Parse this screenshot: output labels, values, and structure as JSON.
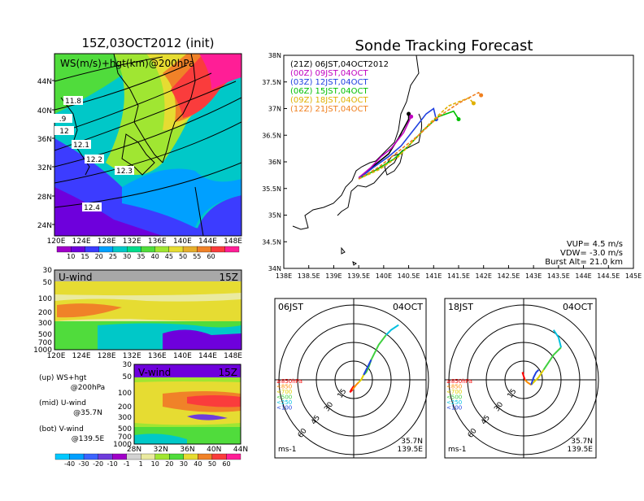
{
  "page": {
    "title": "Sonde Tracking Forecast"
  },
  "left": {
    "title": "15Z,03OCT2012 (init)",
    "map_label": "WS(m/s)+hgt(km)@200hPa",
    "map_lat_labels": [
      "44N",
      "40N",
      "36N",
      "32N",
      "28N",
      "24N"
    ],
    "map_lon_labels": [
      "120E",
      "124E",
      "128E",
      "132E",
      "136E",
      "140E",
      "144E",
      "148E"
    ],
    "contour_labels": [
      "11.8",
      ".9",
      "12",
      "12.1",
      "12.2",
      "12.3",
      "12.4"
    ],
    "ws_colorbar": [
      "10",
      "15",
      "20",
      "25",
      "30",
      "35",
      "40",
      "45",
      "50",
      "55",
      "60"
    ],
    "ws_colors": [
      "#a000c8",
      "#6e00dc",
      "#3c3cff",
      "#00a0ff",
      "#00c8c8",
      "#00dc8c",
      "#50dc3c",
      "#a0e632",
      "#e6dc32",
      "#e6af2d",
      "#f08228",
      "#fa3c3c",
      "#ff1e96"
    ],
    "u_label": "U-wind",
    "u_time": "15Z",
    "u_pressure_labels": [
      "30",
      "50",
      "100",
      "200",
      "300",
      "500",
      "700",
      "1000"
    ],
    "u_lon_labels": [
      "120E",
      "124E",
      "128E",
      "132E",
      "136E",
      "140E",
      "144E",
      "148E"
    ],
    "v_label": "V-wind",
    "v_time": "15Z",
    "v_pressure_labels": [
      "30",
      "50",
      "100",
      "200",
      "300",
      "500",
      "700",
      "1000"
    ],
    "v_lat_labels": [
      "28N",
      "32N",
      "36N",
      "40N",
      "44N"
    ],
    "legend_lines": [
      "(up) WS+hgt",
      "@200hPa",
      "(mid) U-wind",
      "@35.7N",
      "(bot) V-wind",
      "@139.5E"
    ],
    "wind_colorbar": [
      "-40",
      "-30",
      "-20",
      "-10",
      "-1",
      "1",
      "10",
      "20",
      "30",
      "40",
      "50",
      "60"
    ],
    "wind_colors": [
      "#00c8ff",
      "#00a0ff",
      "#3c64ff",
      "#6e3cdc",
      "#a000c8",
      "#d2d2d2",
      "#eaeaa0",
      "#a0e632",
      "#50dc3c",
      "#e6dc32",
      "#f08228",
      "#fa3c3c",
      "#ff1e96"
    ]
  },
  "chart_data": [
    {
      "type": "line",
      "title": "Sonde Tracking Forecast",
      "xlim": [
        138.0,
        145.0
      ],
      "ylim": [
        34.0,
        38.0
      ],
      "xticks": [
        "138E",
        "138.5E",
        "139E",
        "139.5E",
        "140E",
        "140.5E",
        "141E",
        "141.5E",
        "142E",
        "142.5E",
        "143E",
        "143.5E",
        "144E",
        "144.5E",
        "145E"
      ],
      "yticks": [
        "34N",
        "34.5N",
        "35N",
        "35.5N",
        "36N",
        "36.5N",
        "37N",
        "37.5N",
        "38N"
      ],
      "legend_placement": "top-left",
      "series": [
        {
          "name": "(21Z) 06JST,04OCT2012",
          "color": "#000000",
          "x": [
            139.5,
            139.7,
            139.9,
            140.1,
            140.3,
            140.5,
            140.5
          ],
          "y": [
            35.7,
            35.85,
            36.0,
            36.15,
            36.45,
            36.8,
            36.9
          ]
        },
        {
          "name": "(00Z) 09JST,04OCT",
          "color": "#c000c0",
          "x": [
            139.5,
            139.75,
            139.95,
            140.15,
            140.4,
            140.55
          ],
          "y": [
            35.7,
            35.9,
            36.1,
            36.25,
            36.55,
            36.85
          ]
        },
        {
          "name": "(03Z) 12JST,04OCT",
          "color": "#2040e0",
          "x": [
            139.5,
            139.8,
            140.1,
            140.35,
            140.6,
            140.85,
            141.0,
            141.05
          ],
          "y": [
            35.68,
            35.9,
            36.1,
            36.3,
            36.6,
            36.9,
            37.0,
            36.8
          ]
        },
        {
          "name": "(06Z) 15JST,04OCT",
          "color": "#00c000",
          "x": [
            139.5,
            139.85,
            140.2,
            140.5,
            140.8,
            141.1,
            141.4,
            141.5
          ],
          "y": [
            35.68,
            35.85,
            36.05,
            36.3,
            36.6,
            36.85,
            36.95,
            36.8
          ]
        },
        {
          "name": "(09Z) 18JST,04OCT",
          "color": "#e0b000",
          "x": [
            139.5,
            139.9,
            140.3,
            140.6,
            140.95,
            141.3,
            141.7,
            141.8
          ],
          "y": [
            35.68,
            35.85,
            36.1,
            36.4,
            36.75,
            37.05,
            37.2,
            37.1
          ]
        },
        {
          "name": "(12Z) 21JST,04OCT",
          "color": "#f08020",
          "x": [
            139.5,
            139.9,
            140.3,
            140.7,
            141.1,
            141.5,
            141.9,
            141.95
          ],
          "y": [
            35.68,
            35.9,
            36.2,
            36.5,
            36.85,
            37.1,
            37.3,
            37.25
          ]
        }
      ],
      "annotations": [
        "VUP= 4.5 m/s",
        "VDW= -3.0 m/s",
        "Burst Alt= 21.0 km"
      ]
    },
    {
      "type": "scatter",
      "title": "06JST",
      "date": "04OCT",
      "rings": [
        "15",
        "30",
        "45",
        "60"
      ],
      "units": "ms-1",
      "station": [
        "35.7N",
        "139.5E"
      ],
      "levels": [
        "≥850hPa",
        "<850",
        "<700",
        "<500",
        "<250",
        "<100"
      ],
      "level_colors": [
        "#ff0000",
        "#ff8c00",
        "#e0d000",
        "#40d040",
        "#00c0e0",
        "#2040e0"
      ],
      "points": [
        {
          "level": "≥850hPa",
          "u": [
            0,
            -2,
            -3,
            -1
          ],
          "v": [
            -5,
            -8,
            -10,
            -8
          ]
        },
        {
          "level": "<850",
          "u": [
            -1,
            2,
            4
          ],
          "v": [
            -8,
            -4,
            -2
          ]
        },
        {
          "level": "<700",
          "u": [
            4,
            6,
            8
          ],
          "v": [
            -2,
            0,
            4
          ]
        },
        {
          "level": "<500",
          "u": [
            8,
            10,
            12,
            14,
            20,
            26
          ],
          "v": [
            4,
            6,
            10,
            16,
            28,
            36
          ]
        },
        {
          "level": "<250",
          "u": [
            26,
            30,
            36
          ],
          "v": [
            36,
            40,
            44
          ]
        },
        {
          "level": "<100",
          "u": [
            8,
            10,
            12,
            14
          ],
          "v": [
            4,
            8,
            12,
            16
          ]
        }
      ]
    },
    {
      "type": "scatter",
      "title": "18JST",
      "date": "04OCT",
      "rings": [
        "15",
        "30",
        "45",
        "60"
      ],
      "units": "ms-1",
      "station": [
        "35.7N",
        "139.5E"
      ],
      "levels": [
        "≥850hPa",
        "<850",
        "<700",
        "<500",
        "<250",
        "<100"
      ],
      "level_colors": [
        "#ff0000",
        "#ff8c00",
        "#e0d000",
        "#40d040",
        "#00c0e0",
        "#2040e0"
      ],
      "points": [
        {
          "level": "≥850hPa",
          "u": [
            0,
            -1,
            0,
            1
          ],
          "v": [
            5,
            6,
            3,
            0
          ]
        },
        {
          "level": "<850",
          "u": [
            1,
            3,
            6
          ],
          "v": [
            0,
            -2,
            -4
          ]
        },
        {
          "level": "<700",
          "u": [
            6,
            12,
            16
          ],
          "v": [
            -4,
            2,
            8
          ]
        },
        {
          "level": "<500",
          "u": [
            16,
            20,
            24,
            30
          ],
          "v": [
            8,
            14,
            20,
            26
          ]
        },
        {
          "level": "<250",
          "u": [
            30,
            28,
            24
          ],
          "v": [
            26,
            34,
            40
          ]
        },
        {
          "level": "<100",
          "u": [
            6,
            8,
            10,
            12
          ],
          "v": [
            -4,
            2,
            6,
            8
          ]
        }
      ]
    }
  ]
}
